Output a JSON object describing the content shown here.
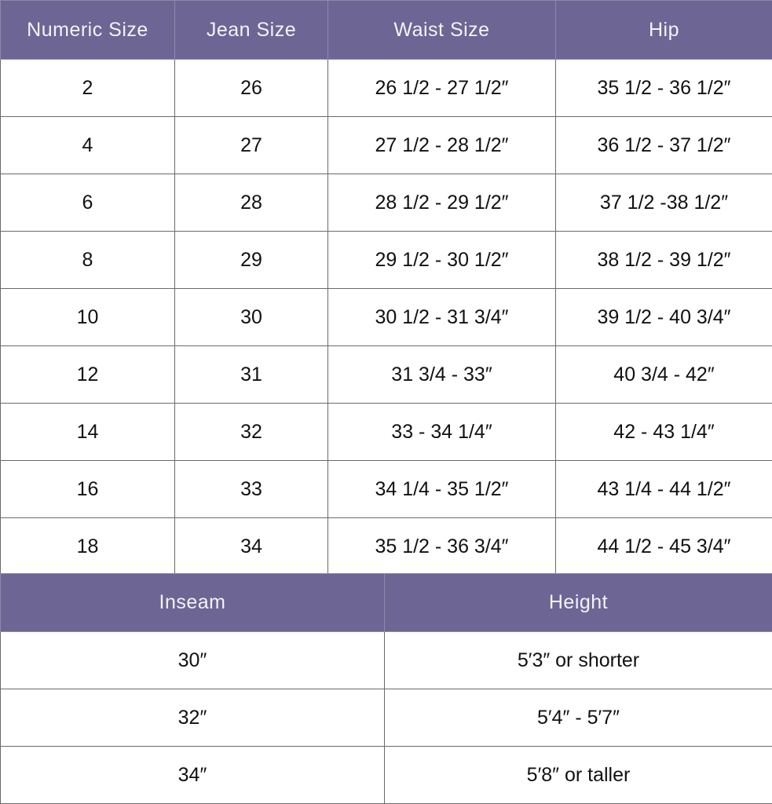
{
  "size_table": {
    "headers": [
      "Numeric Size",
      "Jean Size",
      "Waist Size",
      "Hip"
    ],
    "rows": [
      [
        "2",
        "26",
        "26 1/2 - 27 1/2″",
        "35 1/2 - 36 1/2″"
      ],
      [
        "4",
        "27",
        "27 1/2 - 28 1/2″",
        "36 1/2 - 37 1/2″"
      ],
      [
        "6",
        "28",
        "28 1/2 - 29 1/2″",
        "37 1/2 -38 1/2″"
      ],
      [
        "8",
        "29",
        "29 1/2 - 30 1/2″",
        "38 1/2 - 39 1/2″"
      ],
      [
        "10",
        "30",
        "30 1/2 - 31 3/4″",
        "39 1/2 - 40 3/4″"
      ],
      [
        "12",
        "31",
        "31 3/4 - 33″",
        "40 3/4 - 42″"
      ],
      [
        "14",
        "32",
        "33 - 34 1/4″",
        "42 - 43 1/4″"
      ],
      [
        "16",
        "33",
        "34 1/4 - 35 1/2″",
        "43 1/4 - 44 1/2″"
      ],
      [
        "18",
        "34",
        "35 1/2 - 36 3/4″",
        "44 1/2 - 45 3/4″"
      ]
    ]
  },
  "inseam_table": {
    "headers": [
      "Inseam",
      "Height"
    ],
    "rows": [
      [
        "30″",
        "5′3″ or shorter"
      ],
      [
        "32″",
        "5′4″ - 5′7″"
      ],
      [
        "34″",
        "5′8″ or taller"
      ]
    ]
  },
  "colors": {
    "header_bg": "#6d6594",
    "header_text": "#f4f2f8"
  }
}
